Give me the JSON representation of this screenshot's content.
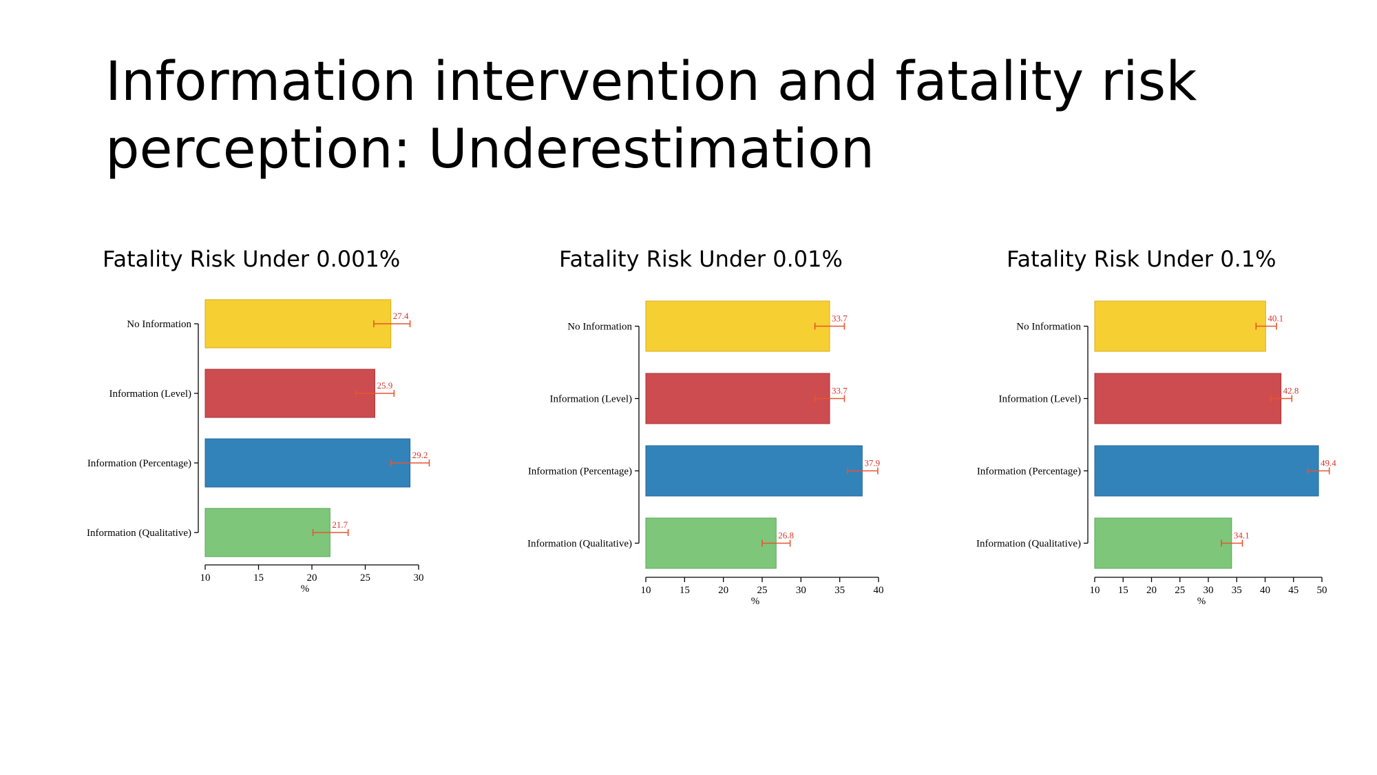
{
  "slide": {
    "title_line1": "Information intervention and fatality risk",
    "title_line2": "perception: Underestimation"
  },
  "colors": {
    "no_information": "#f6cf33",
    "information_level": "#cc4c4f",
    "information_percentage": "#3283ba",
    "information_qualitative": "#7dc67a",
    "error_bar": "#e8542e",
    "value_label": "#d3342b"
  },
  "chart_data": [
    {
      "type": "bar",
      "orientation": "horizontal",
      "title": "Fatality Risk Under 0.001%",
      "categories": [
        "No Information",
        "Information (Level)",
        "Information (Percentage)",
        "Information (Qualitative)"
      ],
      "values": [
        27.4,
        25.9,
        29.2,
        21.7
      ],
      "error_low": [
        25.8,
        24.1,
        27.4,
        20.1
      ],
      "error_high": [
        29.2,
        27.7,
        31.0,
        23.4
      ],
      "xlabel": "%",
      "xlim": [
        10,
        30
      ],
      "xticks": [
        10,
        15,
        20,
        25,
        30
      ],
      "grid": false
    },
    {
      "type": "bar",
      "orientation": "horizontal",
      "title": "Fatality Risk Under 0.01%",
      "categories": [
        "No Information",
        "Information (Level)",
        "Information (Percentage)",
        "Information (Qualitative)"
      ],
      "values": [
        33.7,
        33.7,
        37.9,
        26.8
      ],
      "error_low": [
        31.8,
        31.8,
        36.0,
        25.0
      ],
      "error_high": [
        35.6,
        35.6,
        39.9,
        28.6
      ],
      "xlabel": "%",
      "xlim": [
        10,
        40
      ],
      "xticks": [
        10,
        15,
        20,
        25,
        30,
        35,
        40
      ],
      "grid": false
    },
    {
      "type": "bar",
      "orientation": "horizontal",
      "title": "Fatality Risk Under 0.1%",
      "categories": [
        "No Information",
        "Information (Level)",
        "Information (Percentage)",
        "Information (Qualitative)"
      ],
      "values": [
        40.1,
        42.8,
        49.4,
        34.1
      ],
      "error_low": [
        38.4,
        41.0,
        47.5,
        32.3
      ],
      "error_high": [
        42.0,
        44.7,
        51.3,
        36.0
      ],
      "xlabel": "%",
      "xlim": [
        10,
        50
      ],
      "xticks": [
        10,
        15,
        20,
        25,
        30,
        35,
        40,
        45,
        50
      ],
      "grid": false
    }
  ]
}
